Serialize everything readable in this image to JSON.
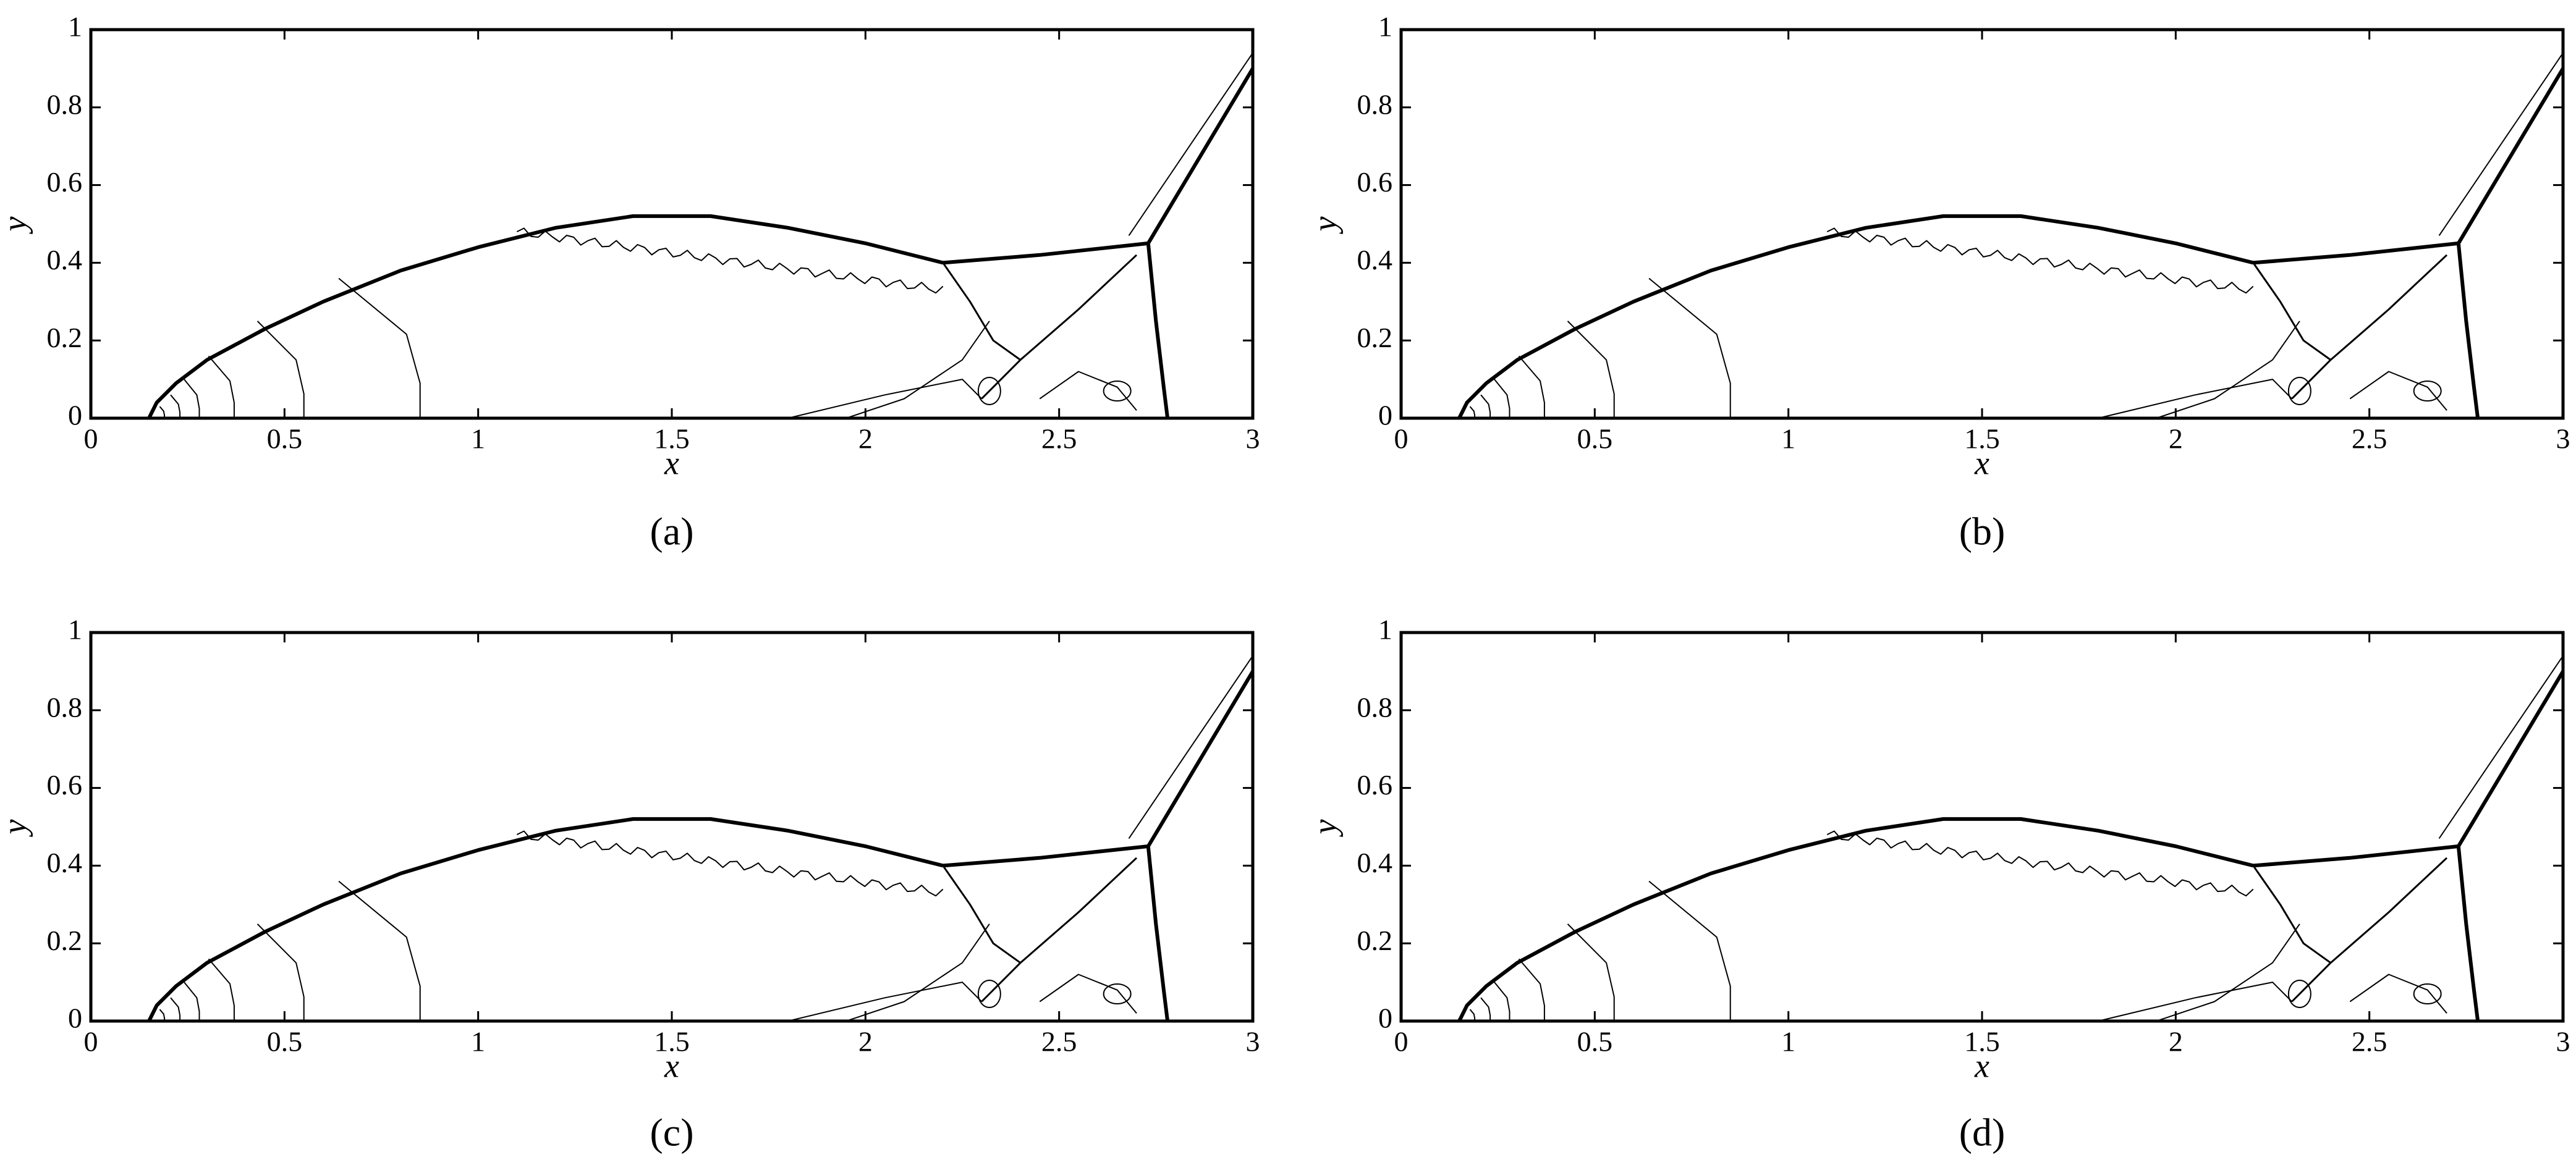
{
  "chart_data": [
    {
      "type": "contour",
      "caption": "(a)",
      "xlabel": "x",
      "ylabel": "y",
      "xlim": [
        0,
        3
      ],
      "ylim": [
        0,
        1
      ],
      "xticks": [
        0,
        0.5,
        1,
        1.5,
        2,
        2.5,
        3
      ],
      "yticks": [
        0,
        0.2,
        0.4,
        0.6,
        0.8,
        1
      ],
      "color": "#000000"
    },
    {
      "type": "contour",
      "caption": "(b)",
      "xlabel": "x",
      "ylabel": "y",
      "xlim": [
        0,
        3
      ],
      "ylim": [
        0,
        1
      ],
      "xticks": [
        0,
        0.5,
        1,
        1.5,
        2,
        2.5,
        3
      ],
      "yticks": [
        0,
        0.2,
        0.4,
        0.6,
        0.8,
        1
      ],
      "color": "#000000"
    },
    {
      "type": "contour",
      "caption": "(c)",
      "xlabel": "x",
      "ylabel": "y",
      "xlim": [
        0,
        3
      ],
      "ylim": [
        0,
        1
      ],
      "xticks": [
        0,
        0.5,
        1,
        1.5,
        2,
        2.5,
        3
      ],
      "yticks": [
        0,
        0.2,
        0.4,
        0.6,
        0.8,
        1
      ],
      "color": "#000000"
    },
    {
      "type": "contour",
      "caption": "(d)",
      "xlabel": "x",
      "ylabel": "y",
      "xlim": [
        0,
        3
      ],
      "ylim": [
        0,
        1
      ],
      "xticks": [
        0,
        0.5,
        1,
        1.5,
        2,
        2.5,
        3
      ],
      "yticks": [
        0,
        0.2,
        0.4,
        0.6,
        0.8,
        1
      ],
      "color": "#000000"
    }
  ]
}
